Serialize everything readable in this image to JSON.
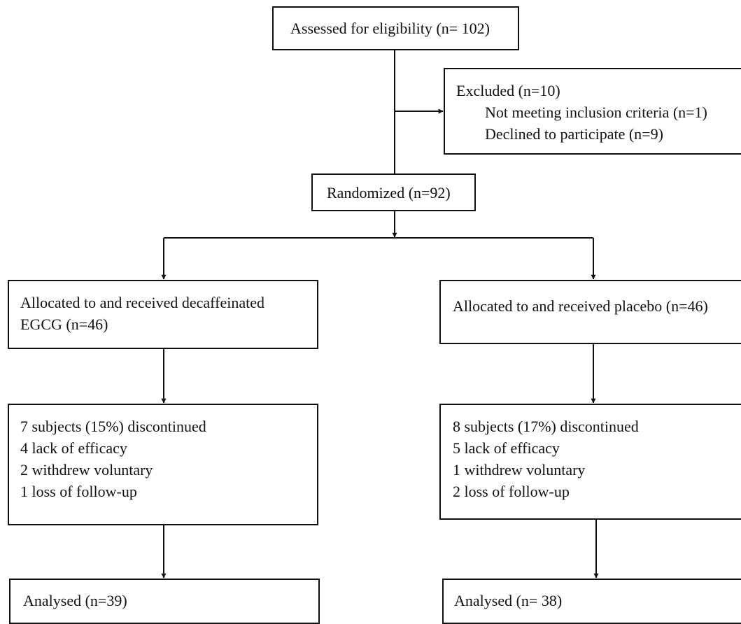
{
  "flowchart": {
    "assessed": "Assessed for eligibility (n= 102)",
    "excluded": {
      "title": "Excluded (n=10)",
      "reasons": [
        "Not meeting inclusion criteria (n=1)",
        "Declined to participate (n=9)"
      ]
    },
    "randomized": "Randomized (n=92)",
    "arms": [
      {
        "allocation": [
          "Allocated to and received decaffeinated",
          "EGCG (n=46)"
        ],
        "discontinued": [
          "7 subjects (15%) discontinued",
          "4 lack of efficacy",
          "2 withdrew voluntary",
          "1 loss of follow-up"
        ],
        "analysed": "Analysed (n=39)"
      },
      {
        "allocation": [
          "Allocated to and received placebo (n=46)"
        ],
        "discontinued": [
          "8 subjects (17%) discontinued",
          "5 lack of efficacy",
          "1 withdrew voluntary",
          "2 loss of follow-up"
        ],
        "analysed": "Analysed (n= 38)"
      }
    ]
  },
  "colors": {
    "line": "#111111",
    "box_border": "#111111",
    "background": "#ffffff"
  }
}
